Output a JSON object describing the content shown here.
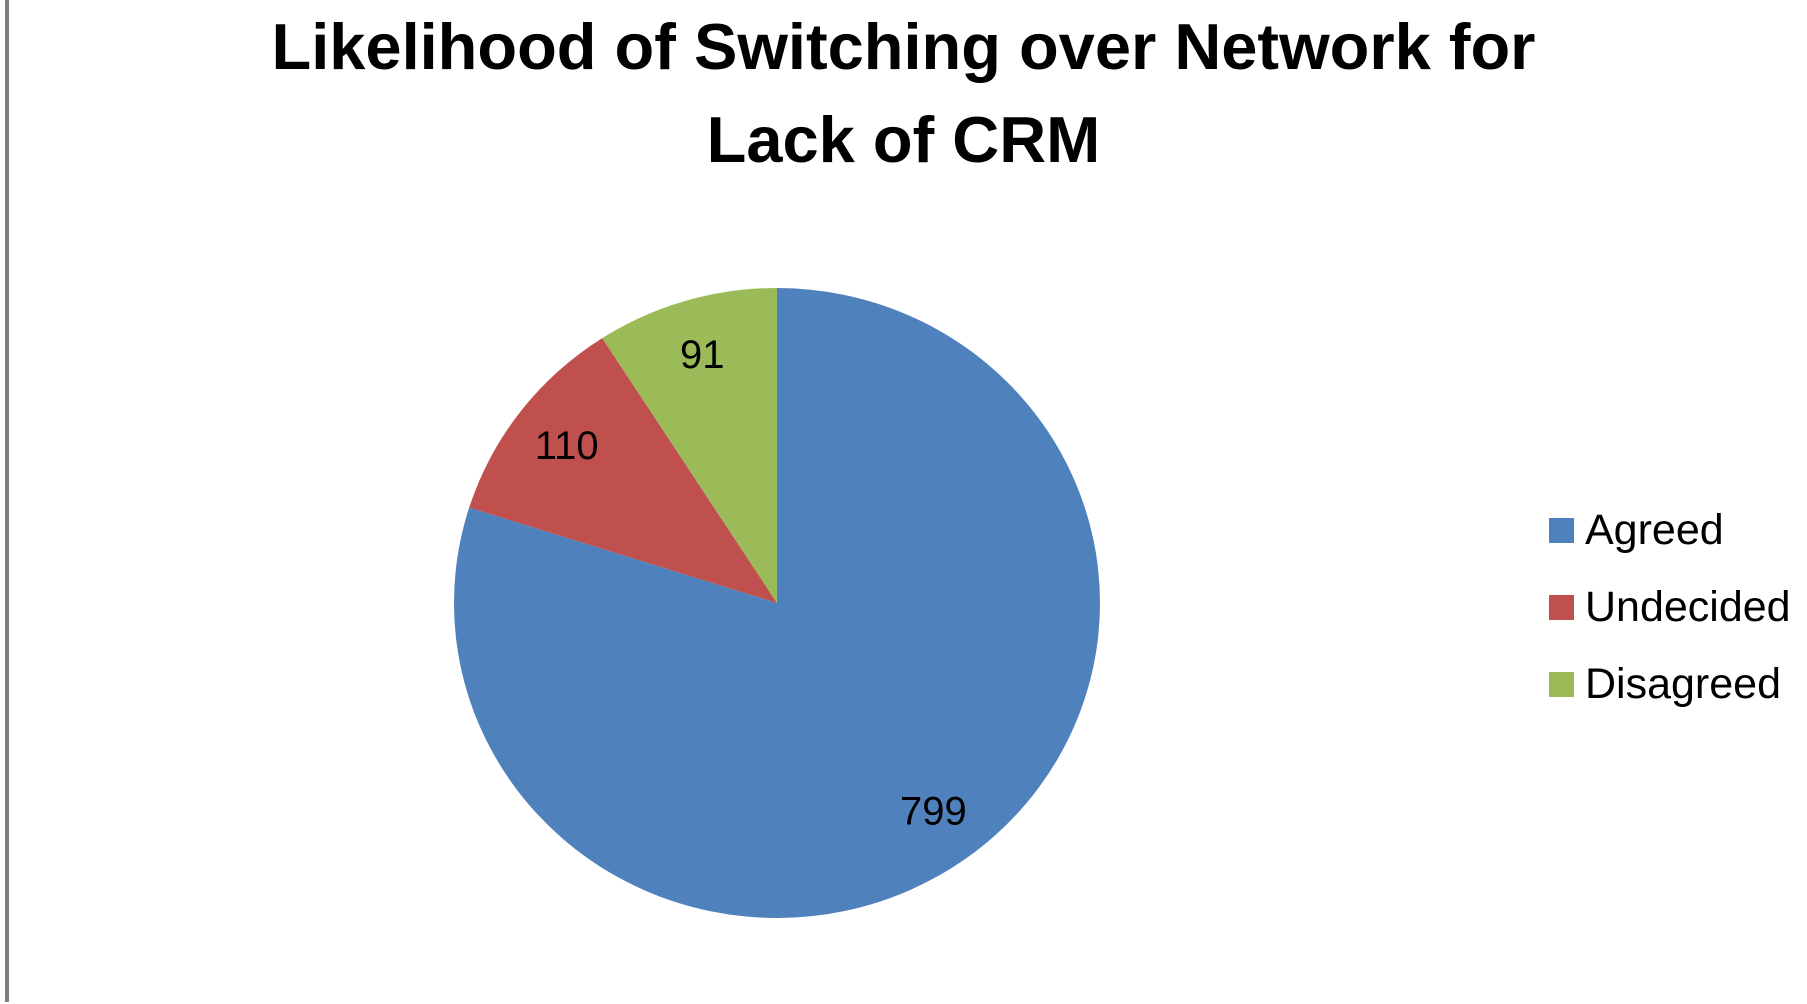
{
  "page": {
    "background": "#FFFFFF",
    "edge_color": "#808080"
  },
  "chart_data": {
    "type": "pie",
    "title": "Likelihood of Switching over Network for Lack of CRM",
    "title_lines": [
      "Likelihood of Switching over Network for",
      "Lack of CRM"
    ],
    "categories": [
      "Agreed",
      "Undecided",
      "Disagreed"
    ],
    "values": [
      799,
      110,
      91
    ],
    "data_labels": [
      "799",
      "110",
      "91"
    ],
    "colors": [
      "#4F81BD",
      "#C0504D",
      "#9BBB59"
    ],
    "total": 1000,
    "start_angle_deg": 0,
    "direction": "clockwise",
    "legend_position": "right",
    "title_color": "#000000",
    "label_color": "#000000"
  },
  "legend": {
    "items": [
      {
        "label": "Agreed",
        "color": "#4F81BD"
      },
      {
        "label": "Undecided",
        "color": "#C0504D"
      },
      {
        "label": "Disagreed",
        "color": "#9BBB59"
      }
    ]
  }
}
